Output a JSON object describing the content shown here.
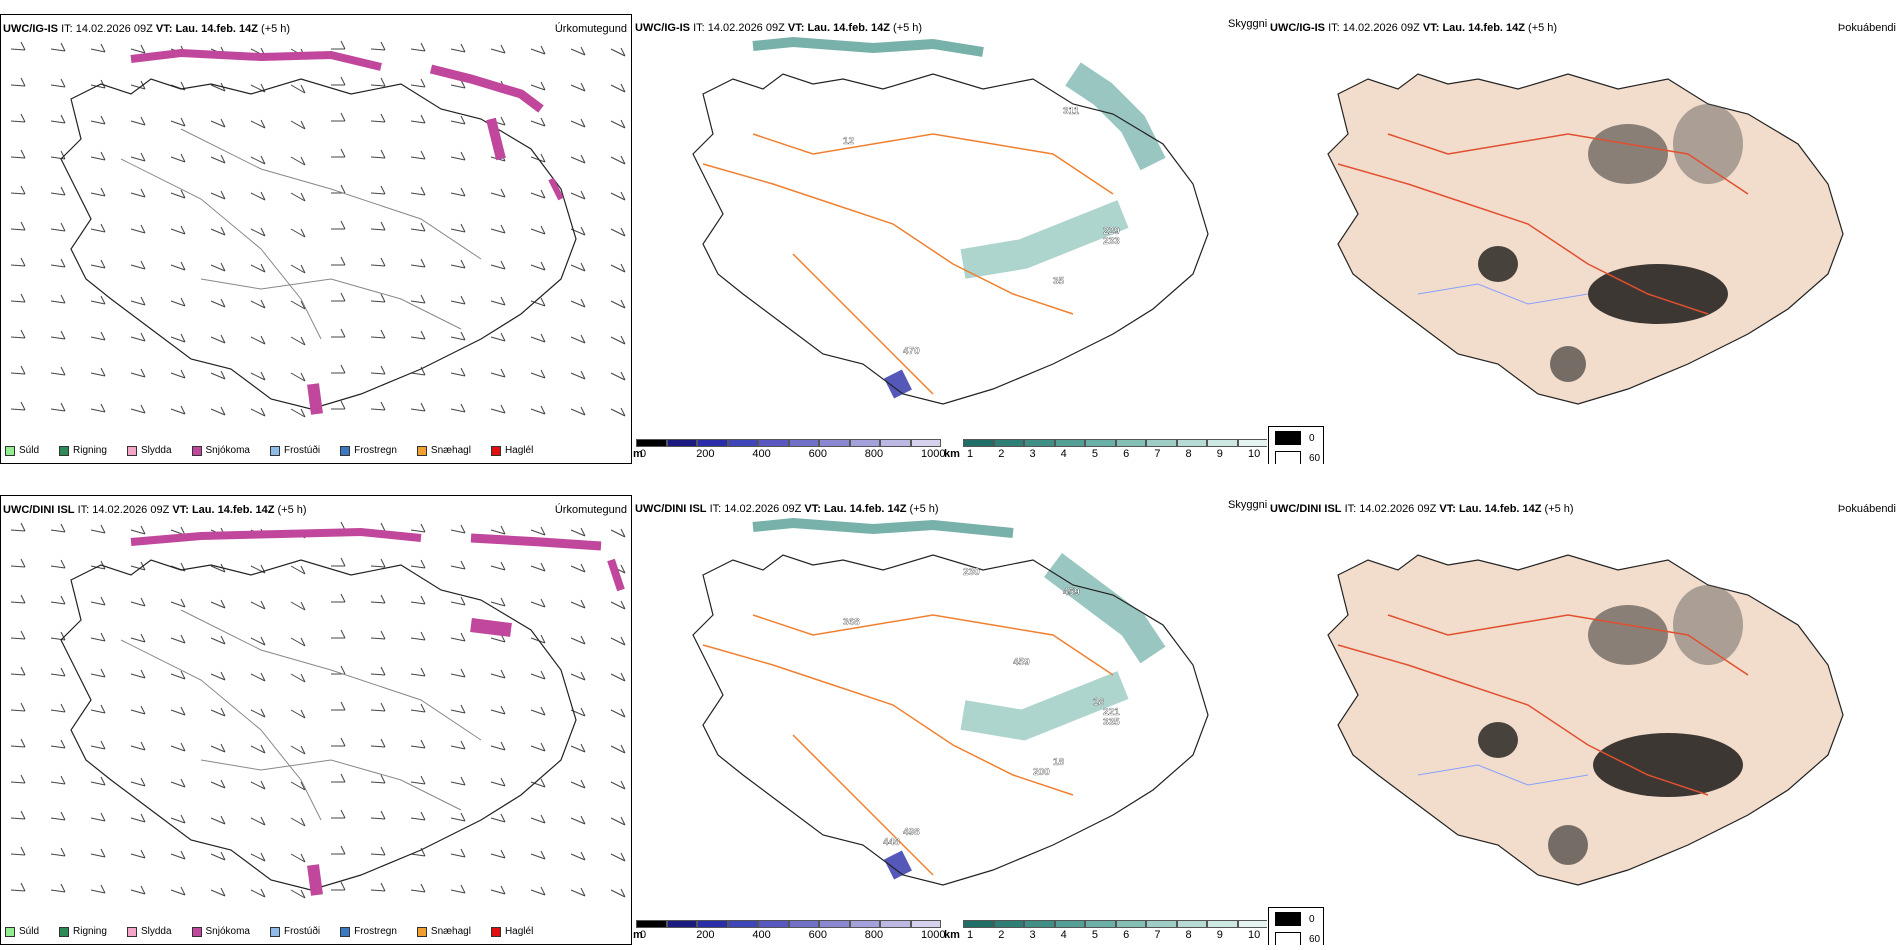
{
  "rows": [
    {
      "model_label": "UWC/IG-IS",
      "it_prefix": "IT:",
      "it_value": "14.02.2026 09Z",
      "vt_prefix": "VT:",
      "vt_value": "Lau. 14.feb. 14Z",
      "lead": "(+5 h)",
      "labels": {
        "precip_type": "Úrkomutegund",
        "visibility": "Skyggni",
        "fog": "Þokuábendi"
      },
      "cloud_values": [
        "12",
        "311",
        "229",
        "233",
        "35",
        "470"
      ]
    },
    {
      "model_label": "UWC/DINI ISL",
      "it_prefix": "IT:",
      "it_value": "14.02.2026 09Z",
      "vt_prefix": "VT:",
      "vt_value": "Lau. 14.feb. 14Z",
      "lead": "(+5 h)",
      "labels": {
        "precip_type": "Úrkomutegund",
        "visibility": "Skyggni",
        "fog": "Þokuábendi"
      },
      "cloud_values": [
        "368",
        "459",
        "221",
        "335",
        "18",
        "498",
        "459",
        "230",
        "18",
        "200",
        "448"
      ]
    }
  ],
  "precip_legend": [
    {
      "label": "Súld",
      "color": "#90ee90"
    },
    {
      "label": "Rigning",
      "color": "#2e8b57"
    },
    {
      "label": "Slydda",
      "color": "#f4a6c8"
    },
    {
      "label": "Snjókoma",
      "color": "#c0479c"
    },
    {
      "label": "Frostúði",
      "color": "#8fbbe8"
    },
    {
      "label": "Frostregn",
      "color": "#3a78c2"
    },
    {
      "label": "Snæhagl",
      "color": "#f0a030"
    },
    {
      "label": "Haglél",
      "color": "#e01010"
    }
  ],
  "cloud_base_scale": {
    "unit": "m",
    "ticks": [
      "0",
      "200",
      "400",
      "600",
      "800",
      "1000"
    ],
    "colors": [
      "#000000",
      "#1a1a80",
      "#2a2ea8",
      "#3e46b8",
      "#5858c0",
      "#7070c8",
      "#8a88d0",
      "#a4a0da",
      "#bcb8e4",
      "#d6d2ee"
    ]
  },
  "visibility_scale": {
    "unit": "km",
    "ticks": [
      "1",
      "2",
      "3",
      "4",
      "5",
      "6",
      "7",
      "8",
      "9",
      "10"
    ],
    "colors": [
      "#1f6f66",
      "#2e8077",
      "#3f8f86",
      "#55a096",
      "#6bb0a6",
      "#84bfb6",
      "#9dcdc5",
      "#b5dbd4",
      "#cde8e3",
      "#e6f4f1"
    ]
  },
  "fog_legend": [
    {
      "value": "0",
      "color": "#000000"
    },
    {
      "value": "60",
      "color": "#ffffff"
    }
  ]
}
